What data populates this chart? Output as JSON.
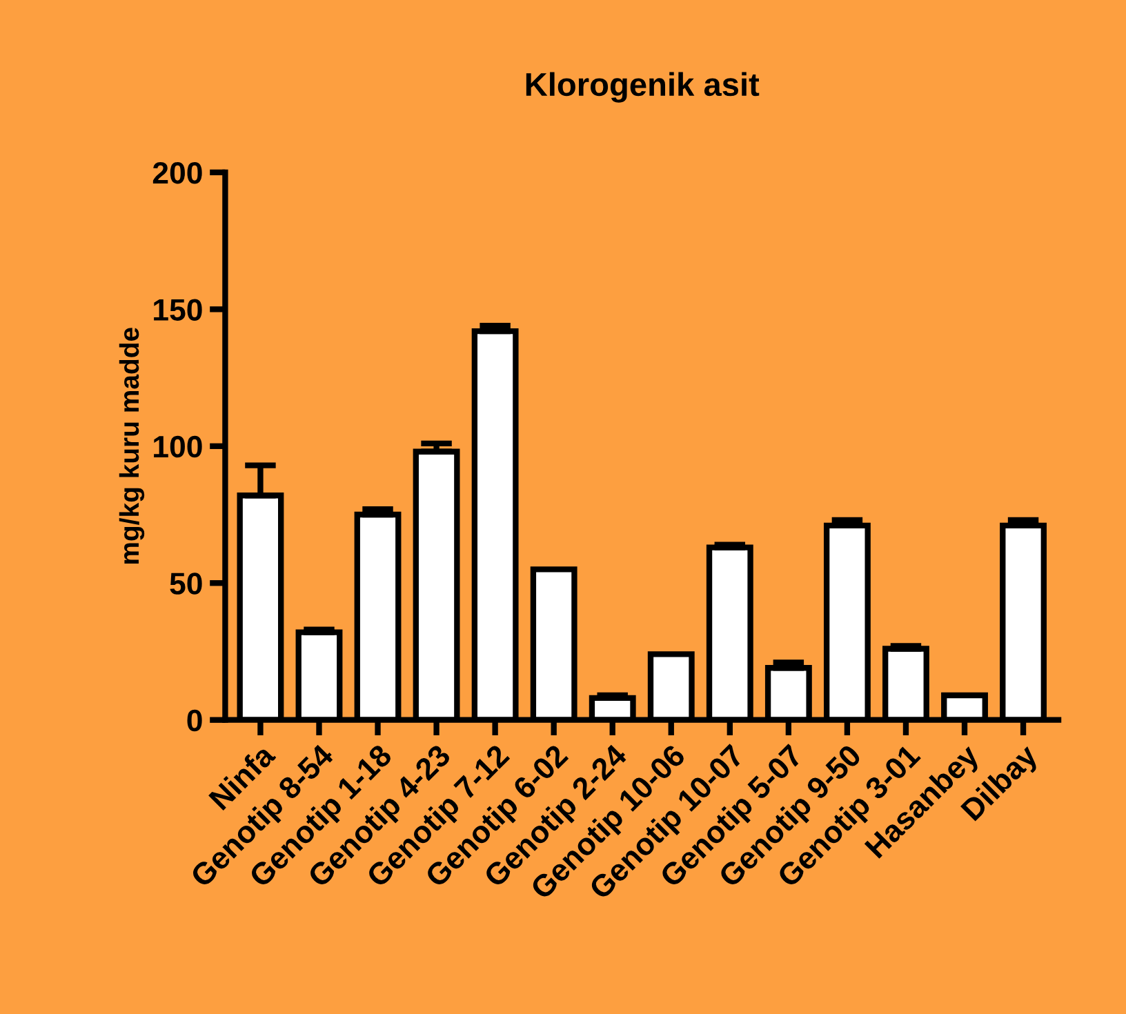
{
  "chart_data": {
    "type": "bar",
    "title": "Klorogenik asit",
    "ylabel": "mg/kg kuru madde",
    "categories": [
      "Ninfa",
      "Genotip 8-54",
      "Genotip 1-18",
      "Genotip 4-23",
      "Genotip 7-12",
      "Genotip 6-02",
      "Genotip 2-24",
      "Genotip 10-06",
      "Genotip 10-07",
      "Genotip 5-07",
      "Genotip 9-50",
      "Genotip 3-01",
      "Hasanbey",
      "Dilbay"
    ],
    "values": [
      82,
      32,
      75,
      98,
      142,
      55,
      8,
      24,
      63,
      19,
      71,
      26,
      9,
      71
    ],
    "errors": [
      [
        82,
        93
      ],
      [
        32,
        33
      ],
      [
        75,
        77
      ],
      [
        98,
        101
      ],
      [
        142,
        144
      ],
      null,
      [
        8,
        9
      ],
      null,
      [
        63,
        64
      ],
      [
        19,
        21
      ],
      [
        71,
        73
      ],
      [
        26,
        27
      ],
      null,
      [
        71,
        73
      ]
    ],
    "color": "#ffffff",
    "ylim": [
      0,
      200
    ],
    "yticks": [
      0,
      50,
      100,
      150,
      200
    ],
    "grid": false
  }
}
